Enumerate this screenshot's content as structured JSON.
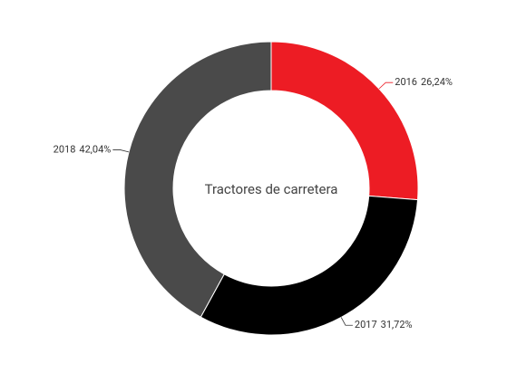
{
  "chart_data": {
    "type": "donut",
    "title": "Tractores de carretera",
    "categories": [
      "2016",
      "2017",
      "2018"
    ],
    "values": [
      26.24,
      31.72,
      42.04
    ],
    "value_labels": [
      "26,24%",
      "31,72%",
      "42,04%"
    ],
    "colors": [
      "#ed1c24",
      "#000000",
      "#4a4a4a"
    ]
  }
}
